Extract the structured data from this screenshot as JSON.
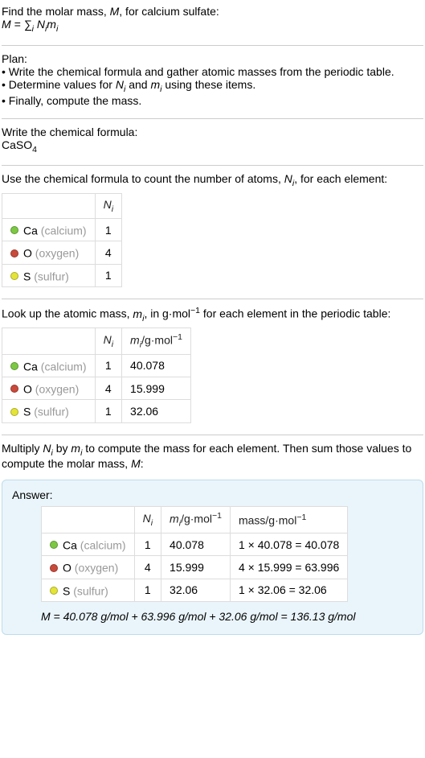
{
  "intro": {
    "line1_a": "Find the molar mass, ",
    "line1_b": ", for calcium sulfate:",
    "eq_lhs": "M",
    "eq_mid": " = ∑",
    "eq_sub": "i",
    "eq_rhs": " N",
    "eq_rhs2": "m"
  },
  "plan": {
    "heading": "Plan:",
    "b1": "• Write the chemical formula and gather atomic masses from the periodic table.",
    "b2_a": "• Determine values for ",
    "b2_b": " and ",
    "b2_c": " using these items.",
    "b3": "• Finally, compute the mass."
  },
  "formula_section": {
    "heading": "Write the chemical formula:",
    "formula_main": "CaSO",
    "formula_sub": "4"
  },
  "count_section": {
    "heading_a": "Use the chemical formula to count the number of atoms, ",
    "heading_b": ", for each element:",
    "col_n": "N",
    "rows": [
      {
        "color": "#7cc843",
        "sym": "Ca",
        "name": "(calcium)",
        "n": "1"
      },
      {
        "color": "#c94a3b",
        "sym": "O",
        "name": "(oxygen)",
        "n": "4"
      },
      {
        "color": "#e4e437",
        "sym": "S",
        "name": "(sulfur)",
        "n": "1"
      }
    ]
  },
  "mass_section": {
    "heading_a": "Look up the atomic mass, ",
    "heading_b": ", in g·mol",
    "heading_c": " for each element in the periodic table:",
    "col_n": "N",
    "col_m_a": "m",
    "col_m_b": "/g·mol",
    "rows": [
      {
        "color": "#7cc843",
        "sym": "Ca",
        "name": "(calcium)",
        "n": "1",
        "m": "40.078"
      },
      {
        "color": "#c94a3b",
        "sym": "O",
        "name": "(oxygen)",
        "n": "4",
        "m": "15.999"
      },
      {
        "color": "#e4e437",
        "sym": "S",
        "name": "(sulfur)",
        "n": "1",
        "m": "32.06"
      }
    ]
  },
  "multiply_section": {
    "line_a": "Multiply ",
    "line_b": " by ",
    "line_c": " to compute the mass for each element. Then sum those values to compute the molar mass, ",
    "line_d": ":"
  },
  "answer": {
    "label": "Answer:",
    "col_n": "N",
    "col_m_a": "m",
    "col_m_b": "/g·mol",
    "col_mass": "mass/g·mol",
    "rows": [
      {
        "color": "#7cc843",
        "sym": "Ca",
        "name": "(calcium)",
        "n": "1",
        "m": "40.078",
        "calc": "1 × 40.078 = 40.078"
      },
      {
        "color": "#c94a3b",
        "sym": "O",
        "name": "(oxygen)",
        "n": "4",
        "m": "15.999",
        "calc": "4 × 15.999 = 63.996"
      },
      {
        "color": "#e4e437",
        "sym": "S",
        "name": "(sulfur)",
        "n": "1",
        "m": "32.06",
        "calc": "1 × 32.06 = 32.06"
      }
    ],
    "sum": "M = 40.078 g/mol + 63.996 g/mol + 32.06 g/mol = 136.13 g/mol"
  }
}
